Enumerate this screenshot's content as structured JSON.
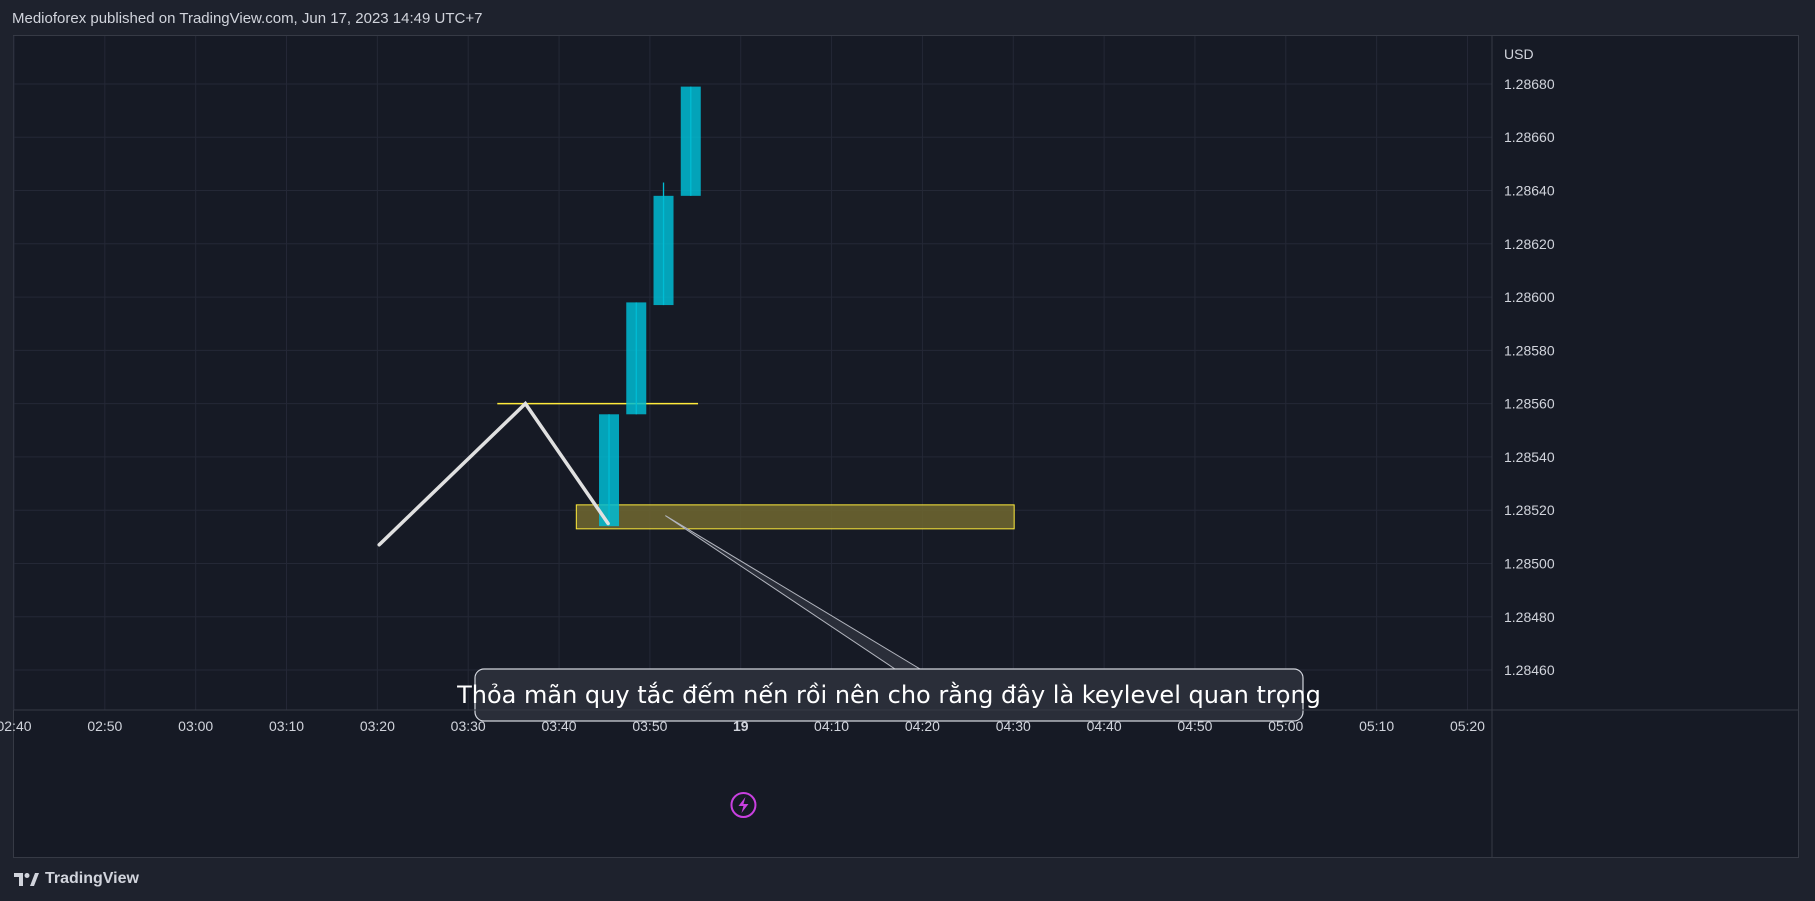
{
  "header": {
    "text": "Medioforex published on TradingView.com, Jun 17, 2023 14:49 UTC+7"
  },
  "footer": {
    "brand": "TradingView"
  },
  "colors": {
    "background": "#161a25",
    "grid": "#242836",
    "axis_text": "#d1d4dc",
    "candle_up": "#00bcd4",
    "swing_line": "#e0e0e0",
    "level_line": "#ffeb3b",
    "zone_fill": "#6b6430",
    "zone_border": "#ffeb3b",
    "event_icon": "#c940e0"
  },
  "chart_data": {
    "type": "candlestick",
    "currency_label": "USD",
    "y_ticks": [
      "1.28680",
      "1.28660",
      "1.28640",
      "1.28620",
      "1.28600",
      "1.28580",
      "1.28560",
      "1.28540",
      "1.28520",
      "1.28500",
      "1.28480",
      "1.28460"
    ],
    "y_tick_values": [
      1.2868,
      1.2866,
      1.2864,
      1.2862,
      1.286,
      1.2858,
      1.2856,
      1.2854,
      1.2852,
      1.285,
      1.2848,
      1.2846
    ],
    "ylim": [
      1.28445,
      1.28698
    ],
    "x_ticks": [
      "02:40",
      "02:50",
      "03:00",
      "03:10",
      "03:20",
      "03:30",
      "03:40",
      "03:50",
      "19",
      "04:10",
      "04:20",
      "04:30",
      "04:40",
      "04:50",
      "05:00",
      "05:10",
      "05:20"
    ],
    "x_tick_minutes": [
      160,
      170,
      180,
      190,
      200,
      210,
      220,
      230,
      240,
      250,
      260,
      270,
      280,
      290,
      300,
      310,
      320
    ],
    "xlim_minutes": [
      160,
      322.7
    ],
    "candles": [
      {
        "t": 225.5,
        "open": 1.28514,
        "high": 1.28556,
        "low": 1.28514,
        "close": 1.28556
      },
      {
        "t": 228.5,
        "open": 1.28556,
        "high": 1.28598,
        "low": 1.28556,
        "close": 1.28598
      },
      {
        "t": 231.5,
        "open": 1.28597,
        "high": 1.28643,
        "low": 1.28597,
        "close": 1.28638
      },
      {
        "t": 234.5,
        "open": 1.28638,
        "high": 1.28679,
        "low": 1.28638,
        "close": 1.28679
      }
    ],
    "swing_line": [
      {
        "t": 200.2,
        "price": 1.28507
      },
      {
        "t": 216.3,
        "price": 1.2856
      },
      {
        "t": 225.4,
        "price": 1.28515
      }
    ],
    "level_line": {
      "t_start": 213.2,
      "t_end": 235.3,
      "price": 1.2856
    },
    "zone": {
      "t_start": 221.9,
      "t_end": 270.1,
      "price_top": 1.28522,
      "price_bottom": 1.28513
    },
    "annotation": {
      "text": "Thỏa mãn quy tắc đếm nến rồi nên cho rằng đây là keylevel quan trọng",
      "anchor_t": 231.7,
      "anchor_price": 1.28518
    },
    "event_marker_t": 240.3
  }
}
